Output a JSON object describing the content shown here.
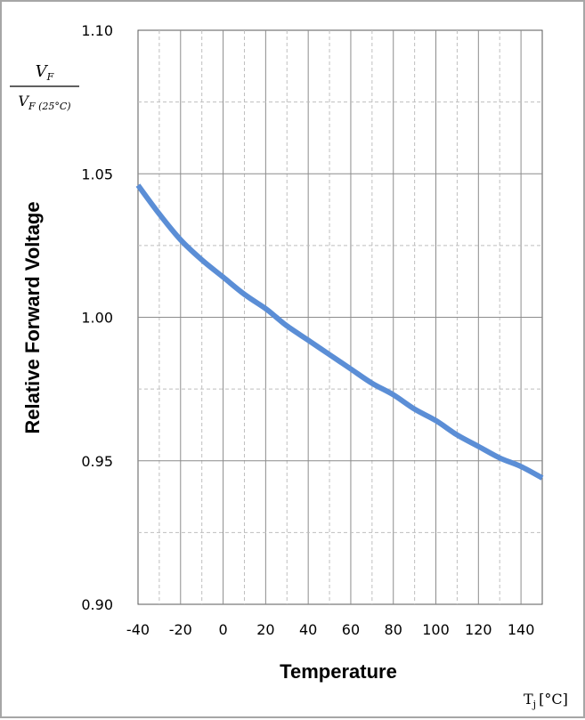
{
  "chart_data": {
    "type": "line",
    "xlabel": "Temperature",
    "ylabel": "Relative Forward Voltage",
    "ratio_label": {
      "numerator": "V",
      "numerator_sub": "F",
      "denominator": "V",
      "denominator_sub": "F (25°C)"
    },
    "unit_label": {
      "symbol": "T",
      "subscript": "j",
      "unit": "[°C]"
    },
    "xlim": [
      -40,
      150
    ],
    "ylim": [
      0.9,
      1.1
    ],
    "x_ticks": [
      "-40",
      "-20",
      "0",
      "20",
      "40",
      "60",
      "80",
      "100",
      "120",
      "140"
    ],
    "x_tick_values": [
      -40,
      -20,
      0,
      20,
      40,
      60,
      80,
      100,
      120,
      140
    ],
    "y_ticks": [
      "0.90",
      "0.95",
      "1.00",
      "1.05",
      "1.10"
    ],
    "y_tick_values": [
      0.9,
      0.95,
      1.0,
      1.05,
      1.1
    ],
    "grid": true,
    "series": [
      {
        "color": "#5b8ed6",
        "x": [
          -40,
          -30,
          -20,
          -10,
          0,
          10,
          20,
          25,
          30,
          40,
          50,
          60,
          70,
          80,
          90,
          100,
          110,
          120,
          130,
          140,
          150
        ],
        "y": [
          1.046,
          1.036,
          1.027,
          1.02,
          1.014,
          1.008,
          1.003,
          1.0,
          0.997,
          0.992,
          0.987,
          0.982,
          0.977,
          0.973,
          0.968,
          0.964,
          0.959,
          0.955,
          0.951,
          0.948,
          0.944
        ]
      }
    ]
  }
}
